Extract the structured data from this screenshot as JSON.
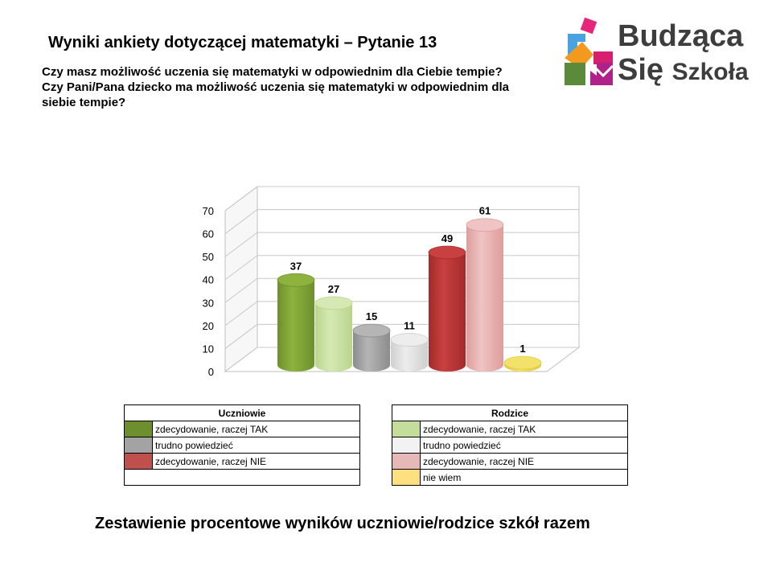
{
  "page": {
    "title": "Wyniki ankiety dotyczącej matematyki – Pytanie 13",
    "question_lines": [
      "Czy masz możliwość uczenia się matematyki w odpowiednim dla Ciebie tempie?",
      "Czy Pani/Pana dziecko ma możliwość uczenia się matematyki w odpowiednim dla",
      "siebie tempie?"
    ],
    "logo": {
      "line1": "Budząca",
      "line2": "Się",
      "line3": "Szkoła"
    },
    "footer": "Zestawienie procentowe wyników uczniowie/rodzice szkół razem"
  },
  "legend": {
    "students": {
      "header": "Uczniowie",
      "items": [
        {
          "label": "zdecydowanie, raczej TAK",
          "color": "#6e8f2e"
        },
        {
          "label": "trudno powiedzieć",
          "color": "#a3a3a3"
        },
        {
          "label": "zdecydowanie, raczej NIE",
          "color": "#c0504d"
        }
      ]
    },
    "parents": {
      "header": "Rodzice",
      "items": [
        {
          "label": "zdecydowanie, raczej TAK",
          "color": "#c4dd9b"
        },
        {
          "label": "trudno powiedzieć",
          "color": "#f2f2f2"
        },
        {
          "label": "zdecydowanie, raczej NIE",
          "color": "#e6b8b7"
        },
        {
          "label": "nie wiem",
          "color": "#ffe080"
        }
      ]
    }
  },
  "chart_data": {
    "type": "bar",
    "style": "3d-cylinder",
    "ylim": [
      0,
      70
    ],
    "yticks": [
      0,
      10,
      20,
      30,
      40,
      50,
      60,
      70
    ],
    "grid": true,
    "series": [
      {
        "group": "Uczniowie",
        "category": "zdecydowanie, raczej TAK",
        "value": 37,
        "color": "#6e8f2e",
        "light": "#8db33e"
      },
      {
        "group": "Rodzice",
        "category": "zdecydowanie, raczej TAK",
        "value": 27,
        "color": "#b9d48d",
        "light": "#d6e9b4"
      },
      {
        "group": "Uczniowie",
        "category": "trudno powiedzieć",
        "value": 15,
        "color": "#8c8c8c",
        "light": "#b5b5b5"
      },
      {
        "group": "Rodzice",
        "category": "trudno powiedzieć",
        "value": 11,
        "color": "#cfcfcf",
        "light": "#ededed"
      },
      {
        "group": "Uczniowie",
        "category": "zdecydowanie, raczej NIE",
        "value": 49,
        "color": "#a32a2a",
        "light": "#c94040"
      },
      {
        "group": "Rodzice",
        "category": "zdecydowanie, raczej NIE",
        "value": 61,
        "color": "#de9d9d",
        "light": "#f0c4c4"
      },
      {
        "group": "Rodzice",
        "category": "nie wiem",
        "value": 1,
        "color": "#e3c93a",
        "light": "#f2e16a"
      }
    ]
  }
}
